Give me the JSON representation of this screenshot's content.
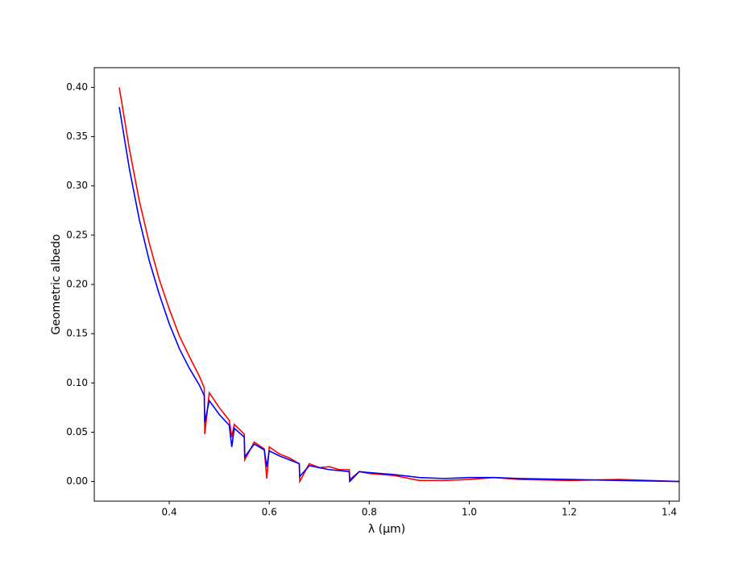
{
  "chart_data": {
    "type": "line",
    "x_label": "λ (μm)",
    "y_label": "Geometric albedo",
    "x": [
      0.3,
      0.32,
      0.34,
      0.36,
      0.38,
      0.4,
      0.42,
      0.44,
      0.46,
      0.47,
      0.471,
      0.48,
      0.5,
      0.52,
      0.525,
      0.53,
      0.55,
      0.551,
      0.57,
      0.59,
      0.595,
      0.6,
      0.62,
      0.64,
      0.66,
      0.661,
      0.68,
      0.7,
      0.72,
      0.74,
      0.76,
      0.761,
      0.78,
      0.8,
      0.85,
      0.9,
      0.95,
      1.0,
      1.05,
      1.1,
      1.2,
      1.3,
      1.42
    ],
    "series": [
      {
        "color": "#ff0000",
        "values": [
          0.4,
          0.338,
          0.285,
          0.242,
          0.205,
          0.175,
          0.148,
          0.127,
          0.107,
          0.095,
          0.048,
          0.09,
          0.075,
          0.062,
          0.045,
          0.058,
          0.048,
          0.022,
          0.04,
          0.033,
          0.003,
          0.035,
          0.028,
          0.024,
          0.018,
          0.0,
          0.018,
          0.014,
          0.015,
          0.012,
          0.012,
          0.002,
          0.01,
          0.008,
          0.006,
          0.001,
          0.001,
          0.002,
          0.004,
          0.002,
          0.001,
          0.002,
          0.0
        ]
      },
      {
        "color": "#0000ff",
        "values": [
          0.38,
          0.318,
          0.266,
          0.224,
          0.19,
          0.16,
          0.135,
          0.115,
          0.098,
          0.087,
          0.06,
          0.082,
          0.068,
          0.057,
          0.035,
          0.054,
          0.045,
          0.025,
          0.038,
          0.032,
          0.015,
          0.031,
          0.026,
          0.022,
          0.018,
          0.005,
          0.016,
          0.014,
          0.012,
          0.011,
          0.01,
          0.0,
          0.01,
          0.009,
          0.007,
          0.004,
          0.003,
          0.004,
          0.004,
          0.003,
          0.002,
          0.001,
          0.0
        ]
      }
    ],
    "xlim": [
      0.25,
      1.42
    ],
    "ylim": [
      -0.02,
      0.42
    ],
    "xticks": [
      0.4,
      0.6,
      0.8,
      {
        "value": 1,
        "label": "1.0"
      },
      1.2,
      1.4
    ],
    "yticks": [
      {
        "value": 0,
        "label": "0.00"
      },
      0.05,
      {
        "value": 0.1,
        "label": "0.10"
      },
      0.15,
      {
        "value": 0.2,
        "label": "0.20"
      },
      0.25,
      {
        "value": 0.3,
        "label": "0.30"
      },
      0.35,
      {
        "value": 0.4,
        "label": "0.40"
      }
    ],
    "grid": false
  }
}
